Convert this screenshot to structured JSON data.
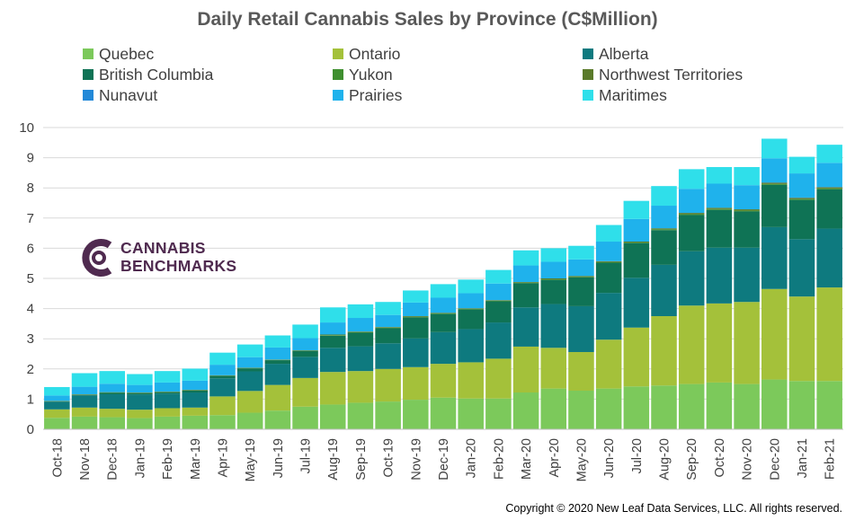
{
  "chart_data": {
    "type": "bar",
    "stacked": true,
    "title": "Daily Retail Cannabis Sales by Province (C$Million)",
    "xlabel": "",
    "ylabel": "",
    "ylim": [
      0,
      10
    ],
    "yticks": [
      0,
      1,
      2,
      3,
      4,
      5,
      6,
      7,
      8,
      9,
      10
    ],
    "grid": true,
    "legend_position": "top",
    "categories": [
      "Oct-18",
      "Nov-18",
      "Dec-18",
      "Jan-19",
      "Feb-19",
      "Mar-19",
      "Apr-19",
      "May-19",
      "Jun-19",
      "Jul-19",
      "Aug-19",
      "Sep-19",
      "Oct-19",
      "Nov-19",
      "Dec-19",
      "Jan-20",
      "Feb-20",
      "Mar-20",
      "Apr-20",
      "May-20",
      "Jun-20",
      "Jul-20",
      "Aug-20",
      "Sep-20",
      "Oct-20",
      "Nov-20",
      "Dec-20",
      "Jan-21",
      "Feb-21"
    ],
    "series": [
      {
        "name": "Quebec",
        "color": "#7cc95b",
        "values": [
          0.38,
          0.42,
          0.4,
          0.37,
          0.42,
          0.45,
          0.47,
          0.55,
          0.62,
          0.75,
          0.82,
          0.88,
          0.92,
          0.98,
          1.05,
          1.02,
          1.02,
          1.22,
          1.35,
          1.28,
          1.35,
          1.42,
          1.45,
          1.5,
          1.55,
          1.5,
          1.65,
          1.6,
          1.6
        ]
      },
      {
        "name": "Ontario",
        "color": "#a4c13a",
        "values": [
          0.28,
          0.3,
          0.28,
          0.28,
          0.28,
          0.27,
          0.62,
          0.72,
          0.85,
          0.95,
          1.08,
          1.05,
          1.08,
          1.08,
          1.12,
          1.2,
          1.32,
          1.52,
          1.35,
          1.28,
          1.62,
          1.95,
          2.3,
          2.6,
          2.62,
          2.72,
          3.0,
          2.8,
          3.1
        ]
      },
      {
        "name": "Alberta",
        "color": "#0e7a7f",
        "values": [
          0.25,
          0.4,
          0.48,
          0.5,
          0.48,
          0.5,
          0.6,
          0.65,
          0.7,
          0.7,
          0.8,
          0.82,
          0.85,
          0.95,
          1.05,
          1.1,
          1.2,
          1.3,
          1.45,
          1.52,
          1.55,
          1.65,
          1.7,
          1.8,
          1.85,
          1.8,
          2.05,
          1.9,
          1.95
        ]
      },
      {
        "name": "British Columbia",
        "color": "#0f7355",
        "values": [
          0.01,
          0.02,
          0.05,
          0.05,
          0.05,
          0.07,
          0.08,
          0.1,
          0.12,
          0.2,
          0.4,
          0.45,
          0.5,
          0.7,
          0.6,
          0.65,
          0.7,
          0.8,
          0.8,
          0.95,
          1.0,
          1.15,
          1.15,
          1.2,
          1.25,
          1.2,
          1.4,
          1.3,
          1.3
        ]
      },
      {
        "name": "Yukon",
        "color": "#3f8f2f",
        "values": [
          0.01,
          0.01,
          0.01,
          0.01,
          0.01,
          0.01,
          0.01,
          0.01,
          0.01,
          0.01,
          0.02,
          0.02,
          0.02,
          0.02,
          0.02,
          0.02,
          0.02,
          0.02,
          0.02,
          0.02,
          0.02,
          0.02,
          0.03,
          0.03,
          0.03,
          0.03,
          0.03,
          0.03,
          0.03
        ]
      },
      {
        "name": "Northwest Territories",
        "color": "#5a7a2a",
        "values": [
          0.01,
          0.01,
          0.01,
          0.01,
          0.01,
          0.01,
          0.01,
          0.01,
          0.01,
          0.01,
          0.02,
          0.02,
          0.02,
          0.02,
          0.02,
          0.02,
          0.02,
          0.02,
          0.03,
          0.03,
          0.03,
          0.03,
          0.03,
          0.04,
          0.04,
          0.04,
          0.04,
          0.04,
          0.04
        ]
      },
      {
        "name": "Nunavut",
        "color": "#2389d8",
        "values": [
          0.0,
          0.0,
          0.0,
          0.0,
          0.0,
          0.0,
          0.0,
          0.0,
          0.0,
          0.0,
          0.0,
          0.0,
          0.0,
          0.0,
          0.0,
          0.0,
          0.0,
          0.0,
          0.0,
          0.0,
          0.0,
          0.0,
          0.0,
          0.0,
          0.0,
          0.0,
          0.01,
          0.01,
          0.01
        ]
      },
      {
        "name": "Prairies",
        "color": "#1fb2ec",
        "values": [
          0.18,
          0.25,
          0.28,
          0.25,
          0.3,
          0.3,
          0.35,
          0.35,
          0.4,
          0.4,
          0.4,
          0.45,
          0.4,
          0.45,
          0.5,
          0.5,
          0.55,
          0.55,
          0.55,
          0.55,
          0.65,
          0.75,
          0.75,
          0.8,
          0.8,
          0.8,
          0.8,
          0.8,
          0.8
        ]
      },
      {
        "name": "Maritimes",
        "color": "#2fdfea",
        "values": [
          0.28,
          0.45,
          0.42,
          0.36,
          0.38,
          0.4,
          0.4,
          0.42,
          0.4,
          0.45,
          0.5,
          0.45,
          0.43,
          0.4,
          0.45,
          0.45,
          0.45,
          0.5,
          0.45,
          0.45,
          0.55,
          0.6,
          0.65,
          0.65,
          0.55,
          0.6,
          0.65,
          0.55,
          0.6
        ]
      }
    ]
  },
  "branding": {
    "logo_line1": "CANNABIS",
    "logo_line2": "BENCHMARKS"
  },
  "footer": {
    "copyright": "Copyright © 2020 New Leaf Data Services, LLC. All rights reserved."
  }
}
